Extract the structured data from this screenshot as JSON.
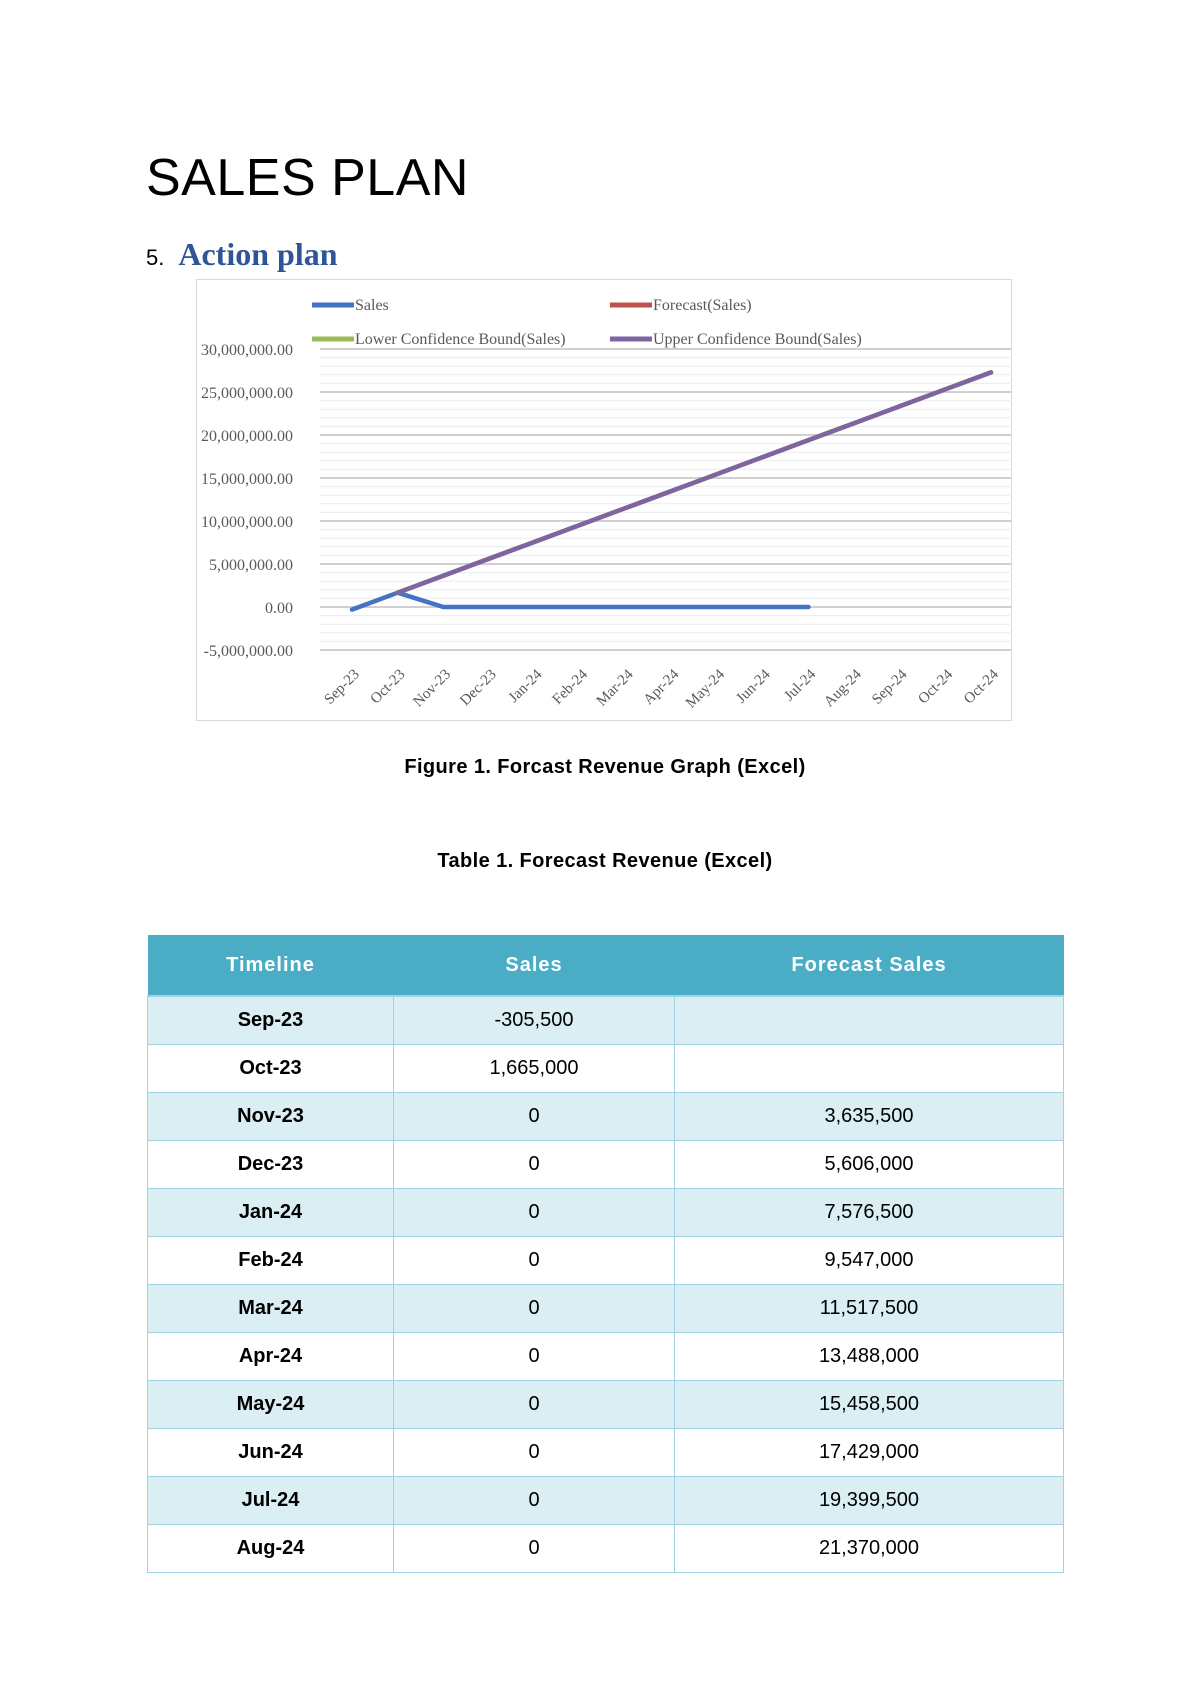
{
  "document": {
    "title": "SALES PLAN",
    "section_number": "5.",
    "section_title": "Action plan",
    "figure_caption": "Figure 1. Forcast Revenue Graph (Excel)",
    "table_caption": "Table 1. Forecast Revenue (Excel)"
  },
  "chart_data": {
    "type": "line",
    "title": "",
    "xlabel": "",
    "ylabel": "",
    "categories": [
      "Sep-23",
      "Oct-23",
      "Nov-23",
      "Dec-23",
      "Jan-24",
      "Feb-24",
      "Mar-24",
      "Apr-24",
      "May-24",
      "Jun-24",
      "Jul-24",
      "Aug-24",
      "Sep-24",
      "Oct-24",
      "Oct-24"
    ],
    "ylim": [
      -5000000,
      30000000
    ],
    "yticks": [
      "30,000,000.00",
      "25,000,000.00",
      "20,000,000.00",
      "15,000,000.00",
      "10,000,000.00",
      "5,000,000.00",
      "0.00",
      "-5,000,000.00"
    ],
    "ytick_values": [
      30000000,
      25000000,
      20000000,
      15000000,
      10000000,
      5000000,
      0,
      -5000000
    ],
    "grid": true,
    "legend_position": "top",
    "series": [
      {
        "name": "Sales",
        "color": "#4472c4",
        "values": [
          -305500,
          1665000,
          0,
          0,
          0,
          0,
          0,
          0,
          0,
          0,
          0,
          null,
          null,
          null,
          null
        ]
      },
      {
        "name": "Forecast(Sales)",
        "color": "#c0504d",
        "values": [
          null,
          1665000,
          3635500,
          5606000,
          7576500,
          9547000,
          11517500,
          13488000,
          15458500,
          17429000,
          19399500,
          21370000,
          23340500,
          25311000,
          27281500
        ]
      },
      {
        "name": "Lower Confidence Bound(Sales)",
        "color": "#9bbb59",
        "values": [
          null,
          1665000,
          3635500,
          5606000,
          7576500,
          9547000,
          11517500,
          13488000,
          15458500,
          17429000,
          19399500,
          21370000,
          23340500,
          25311000,
          27281500
        ]
      },
      {
        "name": "Upper Confidence Bound(Sales)",
        "color": "#8064a2",
        "values": [
          null,
          1665000,
          3635500,
          5606000,
          7576500,
          9547000,
          11517500,
          13488000,
          15458500,
          17429000,
          19399500,
          21370000,
          23340500,
          25311000,
          27281500
        ]
      }
    ]
  },
  "table": {
    "headers": [
      "Timeline",
      "Sales",
      "Forecast Sales"
    ],
    "rows": [
      [
        "Sep-23",
        "-305,500",
        ""
      ],
      [
        "Oct-23",
        "1,665,000",
        ""
      ],
      [
        "Nov-23",
        "0",
        "3,635,500"
      ],
      [
        "Dec-23",
        "0",
        "5,606,000"
      ],
      [
        "Jan-24",
        "0",
        "7,576,500"
      ],
      [
        "Feb-24",
        "0",
        "9,547,000"
      ],
      [
        "Mar-24",
        "0",
        "11,517,500"
      ],
      [
        "Apr-24",
        "0",
        "13,488,000"
      ],
      [
        "May-24",
        "0",
        "15,458,500"
      ],
      [
        "Jun-24",
        "0",
        "17,429,000"
      ],
      [
        "Jul-24",
        "0",
        "19,399,500"
      ],
      [
        "Aug-24",
        "0",
        "21,370,000"
      ]
    ],
    "header_color": "#4bacc6",
    "stripe_color": "#daeef3"
  }
}
